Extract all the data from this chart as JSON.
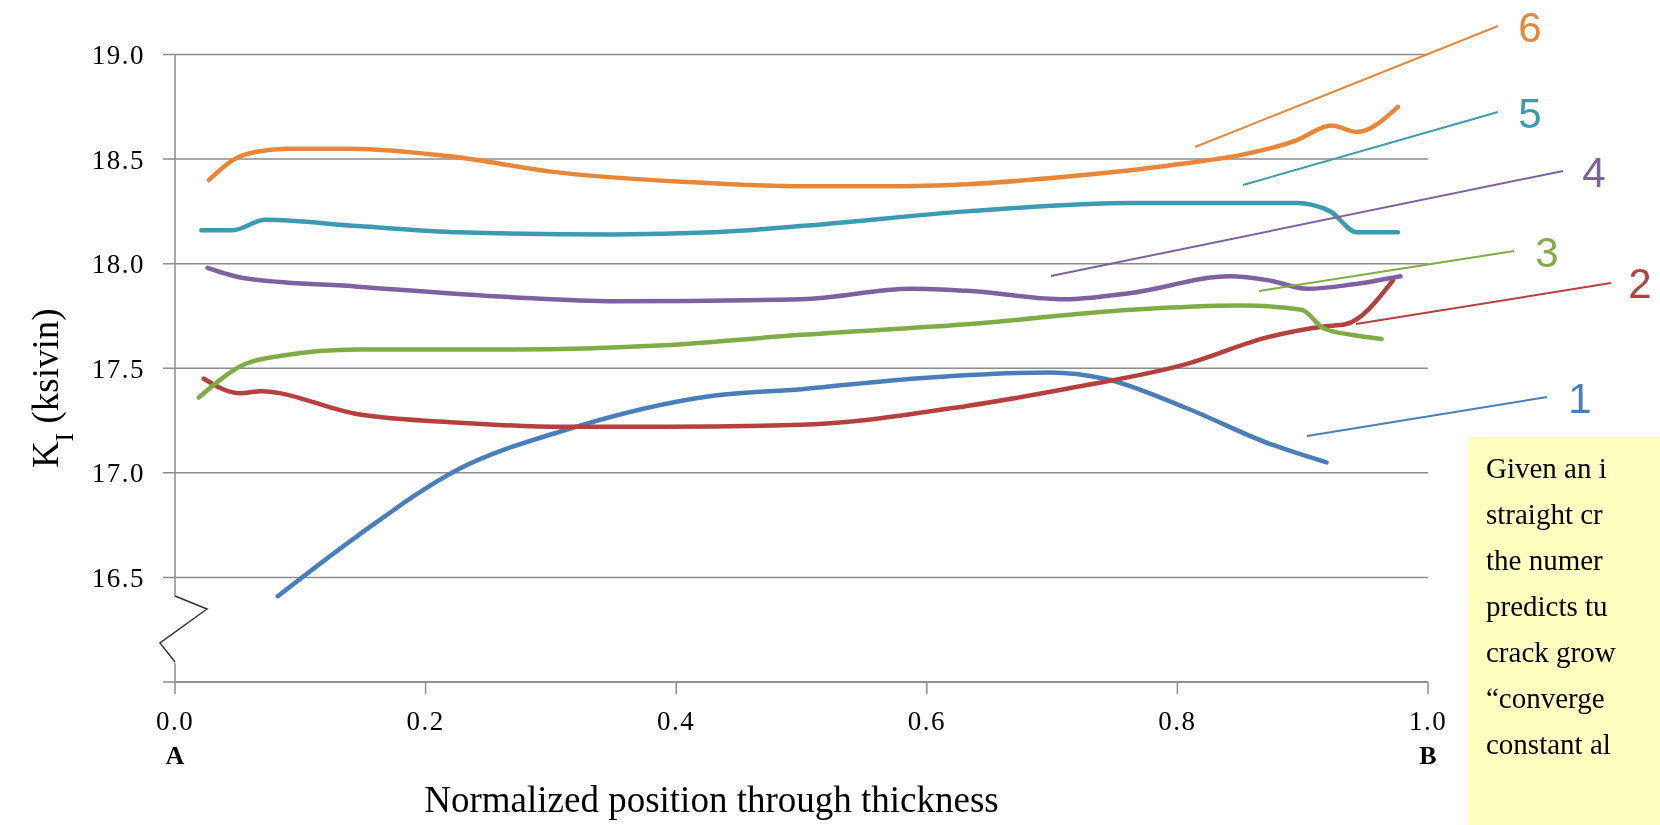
{
  "chart_data": {
    "type": "line",
    "xlabel": "Normalized position through thickness",
    "ylabel": "K$_{I}$ (ksivin)",
    "xlim": [
      0,
      1
    ],
    "xticks": [
      {
        "value": 0,
        "label": "0.0"
      },
      0.2,
      0.4,
      0.6,
      0.8,
      {
        "value": 1,
        "label": "1.0"
      }
    ],
    "ylim": [
      16,
      19
    ],
    "yticks": [
      {
        "value": 16,
        "label": null
      },
      16.5,
      {
        "value": 17,
        "label": "17.0"
      },
      17.5,
      {
        "value": 18,
        "label": "18.0"
      },
      18.5,
      {
        "value": 19,
        "label": "19.0"
      }
    ],
    "grid": "y",
    "annotations": [
      "A",
      "B",
      "Given an i\nstraight cr\nthe numer\npredicts tu\ncrack grow\n“converge\nconstant al"
    ],
    "series": [
      {
        "name": "1",
        "color": "#4a7ebb",
        "x": [
          0.082,
          0.146,
          0.227,
          0.309,
          0.431,
          0.5,
          0.588,
          0.698,
          0.742,
          0.807,
          0.873,
          0.919
        ],
        "values": [
          16.41,
          16.7,
          17.02,
          17.2,
          17.37,
          17.4,
          17.45,
          17.48,
          17.45,
          17.31,
          17.14,
          17.05
        ]
      },
      {
        "name": "2",
        "color": "#b5413e",
        "x": [
          0.023,
          0.052,
          0.068,
          0.146,
          0.227,
          0.309,
          0.39,
          0.5,
          0.632,
          0.719,
          0.807,
          0.873,
          0.917,
          0.934,
          0.972
        ],
        "values": [
          17.45,
          17.38,
          17.39,
          17.28,
          17.24,
          17.22,
          17.22,
          17.23,
          17.32,
          17.41,
          17.52,
          17.65,
          17.7,
          17.71,
          17.92
        ]
      },
      {
        "name": "3",
        "color": "#80ac48",
        "x": [
          0.019,
          0.056,
          0.085,
          0.146,
          0.268,
          0.39,
          0.5,
          0.632,
          0.763,
          0.851,
          0.899,
          0.917,
          0.939,
          0.963
        ],
        "values": [
          17.36,
          17.52,
          17.56,
          17.59,
          17.59,
          17.61,
          17.66,
          17.71,
          17.78,
          17.8,
          17.78,
          17.69,
          17.66,
          17.64
        ]
      },
      {
        "name": "4",
        "color": "#7f60a0",
        "x": [
          0.026,
          0.056,
          0.146,
          0.268,
          0.35,
          0.5,
          0.588,
          0.632,
          0.71,
          0.763,
          0.842,
          0.873,
          0.904,
          0.939,
          0.978
        ],
        "values": [
          17.98,
          17.93,
          17.89,
          17.84,
          17.82,
          17.83,
          17.88,
          17.87,
          17.83,
          17.86,
          17.94,
          17.92,
          17.88,
          17.9,
          17.94
        ]
      },
      {
        "name": "5",
        "color": "#3c9ab2",
        "x": [
          0.021,
          0.046,
          0.072,
          0.146,
          0.227,
          0.35,
          0.43,
          0.5,
          0.632,
          0.763,
          0.895,
          0.922,
          0.943,
          0.976
        ],
        "values": [
          18.16,
          18.16,
          18.21,
          18.18,
          18.15,
          18.14,
          18.15,
          18.18,
          18.25,
          18.29,
          18.29,
          18.25,
          18.15,
          18.15
        ]
      },
      {
        "name": "6",
        "color": "#e8873a",
        "x": [
          0.027,
          0.055,
          0.089,
          0.14,
          0.224,
          0.3,
          0.41,
          0.5,
          0.566,
          0.632,
          0.719,
          0.807,
          0.851,
          0.895,
          0.923,
          0.943,
          0.976
        ],
        "values": [
          18.4,
          18.52,
          18.55,
          18.55,
          18.51,
          18.44,
          18.39,
          18.37,
          18.37,
          18.38,
          18.42,
          18.48,
          18.52,
          18.59,
          18.66,
          18.63,
          18.75
        ]
      }
    ]
  }
}
